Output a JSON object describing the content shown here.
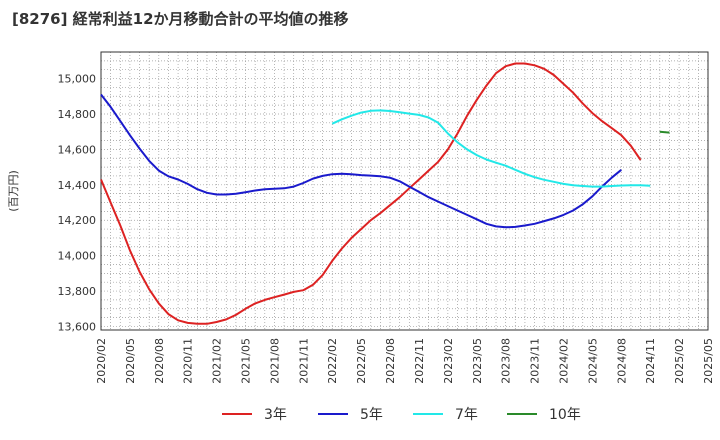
{
  "chart_data": {
    "type": "line",
    "title": "[8276]  経常利益12か月移動合計の平均値の推移",
    "xlabel": "",
    "ylabel": "(百万円)",
    "ylim": [
      13580,
      15150
    ],
    "yticks": [
      13600,
      13800,
      14000,
      14200,
      14400,
      14600,
      14800,
      15000
    ],
    "ytick_labels": [
      "13,600",
      "13,800",
      "14,000",
      "14,200",
      "14,400",
      "14,600",
      "14,800",
      "15,000"
    ],
    "x_start": "2020-02",
    "x_end": "2025-05",
    "xtick_labels": [
      "2020/02",
      "2020/05",
      "2020/08",
      "2020/11",
      "2021/02",
      "2021/05",
      "2021/08",
      "2021/11",
      "2022/02",
      "2022/05",
      "2022/08",
      "2022/11",
      "2023/02",
      "2023/05",
      "2023/08",
      "2023/11",
      "2024/02",
      "2024/05",
      "2024/08",
      "2024/11",
      "2025/02",
      "2025/05"
    ],
    "grid": true,
    "legend_position": "bottom",
    "series": [
      {
        "name": "3年",
        "color": "#dd2222",
        "start": "2020-02",
        "values": [
          14430,
          14300,
          14170,
          14030,
          13910,
          13810,
          13730,
          13670,
          13635,
          13620,
          13615,
          13615,
          13625,
          13640,
          13665,
          13700,
          13730,
          13750,
          13765,
          13780,
          13795,
          13805,
          13835,
          13890,
          13970,
          14040,
          14100,
          14150,
          14200,
          14240,
          14285,
          14330,
          14380,
          14430,
          14480,
          14530,
          14600,
          14690,
          14790,
          14880,
          14960,
          15030,
          15070,
          15085,
          15085,
          15075,
          15055,
          15020,
          14970,
          14920,
          14860,
          14805,
          14760,
          14720,
          14680,
          14620,
          14540
        ]
      },
      {
        "name": "5年",
        "color": "#1a1acc",
        "start": "2020-02",
        "values": [
          14910,
          14840,
          14760,
          14680,
          14605,
          14535,
          14480,
          14448,
          14430,
          14405,
          14375,
          14355,
          14345,
          14345,
          14350,
          14358,
          14368,
          14375,
          14378,
          14380,
          14390,
          14410,
          14435,
          14450,
          14460,
          14462,
          14460,
          14455,
          14452,
          14448,
          14440,
          14420,
          14390,
          14360,
          14330,
          14305,
          14280,
          14255,
          14230,
          14205,
          14180,
          14165,
          14160,
          14162,
          14170,
          14180,
          14195,
          14210,
          14230,
          14255,
          14290,
          14335,
          14390,
          14440,
          14485
        ]
      },
      {
        "name": "7年",
        "color": "#22e8e8",
        "start": "2022-02",
        "values": [
          14745,
          14770,
          14790,
          14808,
          14818,
          14820,
          14817,
          14810,
          14802,
          14795,
          14780,
          14750,
          14690,
          14640,
          14600,
          14568,
          14543,
          14525,
          14508,
          14485,
          14462,
          14443,
          14428,
          14417,
          14405,
          14398,
          14393,
          14390,
          14390,
          14393,
          14396,
          14398,
          14398,
          14395
        ]
      },
      {
        "name": "10年",
        "color": "#2a8a2a",
        "start": "2024-12",
        "values": [
          14700,
          14695
        ]
      }
    ]
  }
}
